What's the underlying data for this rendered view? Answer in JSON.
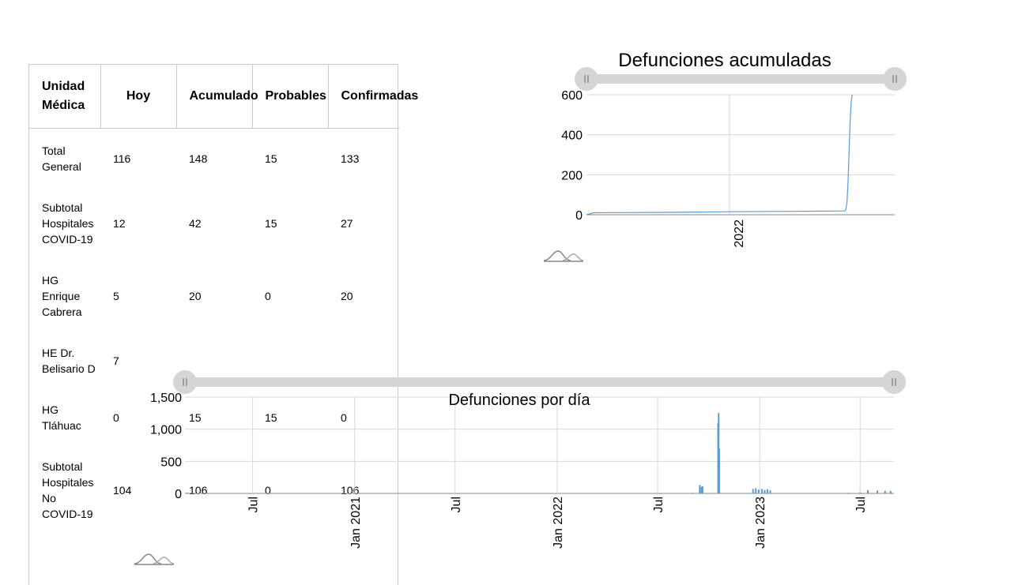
{
  "table": {
    "headers": [
      "Unidad Médica",
      "Hoy",
      "Acumulado",
      "Probables",
      "Confirmadas"
    ],
    "rows": [
      [
        "Total General",
        "116",
        "148",
        "15",
        "133"
      ],
      [
        "Subtotal Hospitales COVID-19",
        "12",
        "42",
        "15",
        "27"
      ],
      [
        "HG Enrique Cabrera",
        "5",
        "20",
        "0",
        "20"
      ],
      [
        "HE Dr. Belisario D",
        "7",
        "",
        "",
        ""
      ],
      [
        "HG Tláhuac",
        "0",
        "15",
        "15",
        "0"
      ],
      [
        "Subtotal Hospitales No COVID-19",
        "104",
        "106",
        "0",
        "106"
      ]
    ]
  },
  "colors": {
    "series": "#5b9bd5",
    "grid": "#d8d8d8",
    "slider": "#d5d5d5",
    "logo": "#888888"
  },
  "icons": {
    "range_handle": "grip-icon",
    "logo": "distribution-logo-icon"
  },
  "chart_data": [
    {
      "type": "line",
      "title": "Defunciones acumuladas",
      "xlabel": "",
      "ylabel": "",
      "ylim": [
        0,
        600
      ],
      "yticks": [
        "0",
        "200",
        "400",
        "600"
      ],
      "xtick_labels": [
        "2022"
      ],
      "xlim": [
        "2021-04-01",
        "2022-11-15"
      ],
      "series": [
        {
          "x": [
            "2021-04-01",
            "2021-04-15",
            "2021-09-01",
            "2022-01-01",
            "2022-05-01",
            "2022-08-10",
            "2022-08-13",
            "2022-08-15",
            "2022-08-17",
            "2022-08-19",
            "2022-08-21",
            "2022-08-23",
            "2022-08-25"
          ],
          "y": [
            0,
            10,
            12,
            15,
            17,
            19,
            25,
            60,
            150,
            300,
            450,
            560,
            600
          ]
        }
      ],
      "grid": true,
      "range_slider": true
    },
    {
      "type": "bar",
      "title": "Defunciones por día",
      "xlabel": "",
      "ylabel": "",
      "ylim": [
        0,
        1500
      ],
      "yticks": [
        "0",
        "500",
        "1,000",
        "1,500"
      ],
      "xtick_labels": [
        "Jul",
        "Jan 2021",
        "Jul",
        "Jan 2022",
        "Jul",
        "Jan 2023",
        "Jul"
      ],
      "xtick_dates": [
        "2020-07-01",
        "2021-01-01",
        "2021-07-01",
        "2022-01-01",
        "2022-07-01",
        "2023-01-01",
        "2023-07-01"
      ],
      "xlim": [
        "2020-03-01",
        "2023-08-31"
      ],
      "series": [
        {
          "x": [
            "2020-03-05",
            "2020-03-12",
            "2022-09-01",
            "2022-09-15",
            "2022-09-18",
            "2022-09-20",
            "2022-10-18",
            "2022-10-19",
            "2022-10-20",
            "2022-12-20",
            "2022-12-25",
            "2022-12-30",
            "2023-01-05",
            "2023-01-10",
            "2023-01-15",
            "2023-01-20",
            "2023-06-10",
            "2023-07-01",
            "2023-07-15",
            "2023-08-01",
            "2023-08-15",
            "2023-08-25"
          ],
          "y": [
            15,
            10,
            10,
            130,
            100,
            110,
            1100,
            1250,
            700,
            70,
            80,
            60,
            70,
            55,
            65,
            50,
            10,
            15,
            50,
            45,
            40,
            40
          ]
        }
      ],
      "grid": true,
      "range_slider": true
    }
  ]
}
